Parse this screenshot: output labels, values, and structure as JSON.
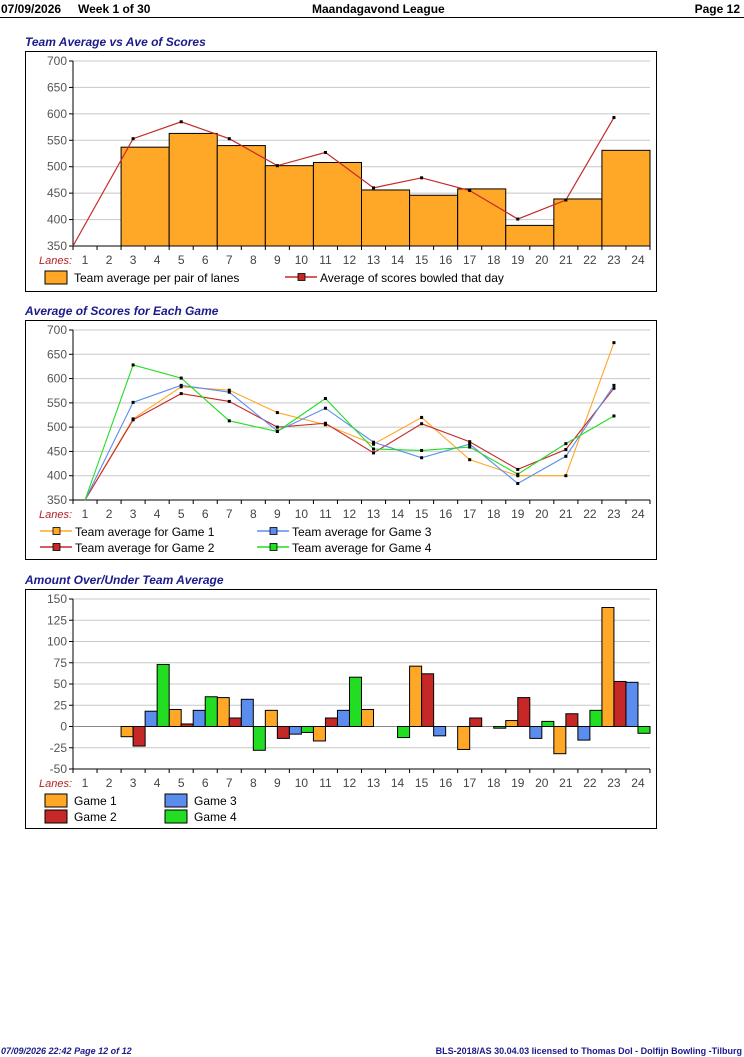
{
  "header": {
    "date": "07/09/2026",
    "week": "Week 1 of 30",
    "league": "Maandagavond League",
    "page": "Page 12"
  },
  "footer": {
    "timestamp": "07/09/2026  22:42  Page 12 of 12",
    "license": "BLS-2018/AS 30.04.03 licensed to Thomas Dol - Dolfijn Bowling -Tilburg"
  },
  "colors": {
    "orange": "#FFA726",
    "red": "#C62828",
    "blue": "#5B8DEF",
    "green": "#22DD22",
    "title": "#1a1a8c",
    "lanes_label": "#B22222"
  },
  "chart_data": [
    {
      "type": "bar",
      "title": "Team Average vs Ave of Scores",
      "xlabel": "Lanes:",
      "x_ticks": [
        "1",
        "2",
        "3",
        "4",
        "5",
        "6",
        "7",
        "8",
        "9",
        "10",
        "11",
        "12",
        "13",
        "14",
        "15",
        "16",
        "17",
        "18",
        "19",
        "20",
        "21",
        "22",
        "23",
        "24"
      ],
      "ylim": [
        350,
        700
      ],
      "y_ticks": [
        350,
        400,
        450,
        500,
        550,
        600,
        650,
        700
      ],
      "grid": true,
      "legend_position": "bottom",
      "categories": [
        "3-4",
        "5-6",
        "7-8",
        "9-10",
        "11-12",
        "13-14",
        "15-16",
        "17-18",
        "19-20",
        "21-22",
        "23-24"
      ],
      "series": [
        {
          "name": "Team average per pair of lanes",
          "kind": "bar",
          "color": "#FFA726",
          "values": [
            537,
            563,
            540,
            502,
            508,
            456,
            446,
            458,
            389,
            439,
            531
          ]
        },
        {
          "name": "Average of scores bowled that day",
          "kind": "line",
          "color": "#C62828",
          "x": [
            1,
            3.5,
            5.5,
            7.5,
            9.5,
            11.5,
            13.5,
            15.5,
            17.5,
            19.5,
            21.5,
            23.5
          ],
          "values": [
            350,
            553,
            585,
            553,
            502,
            527,
            460,
            479,
            455,
            401,
            437,
            593
          ]
        }
      ]
    },
    {
      "type": "line",
      "title": "Average of Scores for Each Game",
      "xlabel": "Lanes:",
      "x_ticks": [
        "1",
        "2",
        "3",
        "4",
        "5",
        "6",
        "7",
        "8",
        "9",
        "10",
        "11",
        "12",
        "13",
        "14",
        "15",
        "16",
        "17",
        "18",
        "19",
        "20",
        "21",
        "22",
        "23",
        "24"
      ],
      "ylim": [
        350,
        700
      ],
      "y_ticks": [
        350,
        400,
        450,
        500,
        550,
        600,
        650,
        700
      ],
      "grid": true,
      "legend_position": "bottom",
      "x": [
        1.5,
        3.5,
        5.5,
        7.5,
        9.5,
        11.5,
        13.5,
        15.5,
        17.5,
        19.5,
        21.5,
        23.5
      ],
      "series": [
        {
          "name": "Team average for Game 1",
          "color": "#FFA726",
          "values": [
            350,
            517,
            583,
            576,
            530,
            505,
            465,
            520,
            433,
            400,
            400,
            674
          ]
        },
        {
          "name": "Team average for Game 2",
          "color": "#C62828",
          "values": [
            350,
            515,
            569,
            553,
            500,
            508,
            447,
            507,
            470,
            413,
            454,
            580
          ]
        },
        {
          "name": "Team average for Game 3",
          "color": "#5B8DEF",
          "values": [
            350,
            551,
            586,
            572,
            492,
            539,
            469,
            437,
            465,
            384,
            440,
            586
          ]
        },
        {
          "name": "Team average for Game 4",
          "color": "#22DD22",
          "values": [
            350,
            628,
            601,
            513,
            491,
            559,
            455,
            452,
            459,
            403,
            466,
            523
          ]
        }
      ]
    },
    {
      "type": "bar",
      "title": "Amount Over/Under Team Average",
      "xlabel": "Lanes:",
      "x_ticks": [
        "1",
        "2",
        "3",
        "4",
        "5",
        "6",
        "7",
        "8",
        "9",
        "10",
        "11",
        "12",
        "13",
        "14",
        "15",
        "16",
        "17",
        "18",
        "19",
        "20",
        "21",
        "22",
        "23",
        "24"
      ],
      "ylim": [
        -50,
        150
      ],
      "y_ticks": [
        -50,
        -25,
        0,
        25,
        50,
        75,
        100,
        125,
        150
      ],
      "grid": true,
      "legend_position": "bottom",
      "categories": [
        "3-4",
        "5-6",
        "7-8",
        "9-10",
        "11-12",
        "13-14",
        "15-16",
        "17-18",
        "19-20",
        "21-22",
        "23-24"
      ],
      "series": [
        {
          "name": "Game 1",
          "color": "#FFA726",
          "values": [
            -12,
            20,
            34,
            19,
            -17,
            20,
            71,
            -27,
            7,
            -32,
            140
          ]
        },
        {
          "name": "Game 2",
          "color": "#C62828",
          "values": [
            -23,
            3,
            10,
            -14,
            10,
            0,
            62,
            10,
            34,
            15,
            53
          ]
        },
        {
          "name": "Game 3",
          "color": "#5B8DEF",
          "values": [
            18,
            19,
            32,
            -9,
            19,
            0,
            -11,
            0,
            -14,
            -16,
            52
          ]
        },
        {
          "name": "Game 4",
          "color": "#22DD22",
          "values": [
            73,
            35,
            -28,
            -7,
            58,
            -13,
            0,
            -2,
            6,
            19,
            -8
          ]
        }
      ]
    }
  ]
}
